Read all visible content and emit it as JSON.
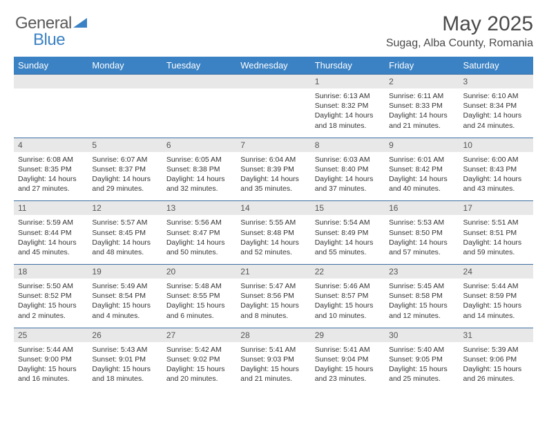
{
  "logo": {
    "text1": "General",
    "text2": "Blue"
  },
  "title": "May 2025",
  "location": "Sugag, Alba County, Romania",
  "colors": {
    "header_bg": "#3b82c4",
    "header_text": "#ffffff",
    "daynum_bg": "#e8e8e8",
    "rule": "#3b6ea0",
    "body_text": "#333333"
  },
  "weekdays": [
    "Sunday",
    "Monday",
    "Tuesday",
    "Wednesday",
    "Thursday",
    "Friday",
    "Saturday"
  ],
  "weeks": [
    [
      {
        "n": "",
        "sr": "",
        "ss": "",
        "dl": ""
      },
      {
        "n": "",
        "sr": "",
        "ss": "",
        "dl": ""
      },
      {
        "n": "",
        "sr": "",
        "ss": "",
        "dl": ""
      },
      {
        "n": "",
        "sr": "",
        "ss": "",
        "dl": ""
      },
      {
        "n": "1",
        "sr": "Sunrise: 6:13 AM",
        "ss": "Sunset: 8:32 PM",
        "dl": "Daylight: 14 hours and 18 minutes."
      },
      {
        "n": "2",
        "sr": "Sunrise: 6:11 AM",
        "ss": "Sunset: 8:33 PM",
        "dl": "Daylight: 14 hours and 21 minutes."
      },
      {
        "n": "3",
        "sr": "Sunrise: 6:10 AM",
        "ss": "Sunset: 8:34 PM",
        "dl": "Daylight: 14 hours and 24 minutes."
      }
    ],
    [
      {
        "n": "4",
        "sr": "Sunrise: 6:08 AM",
        "ss": "Sunset: 8:35 PM",
        "dl": "Daylight: 14 hours and 27 minutes."
      },
      {
        "n": "5",
        "sr": "Sunrise: 6:07 AM",
        "ss": "Sunset: 8:37 PM",
        "dl": "Daylight: 14 hours and 29 minutes."
      },
      {
        "n": "6",
        "sr": "Sunrise: 6:05 AM",
        "ss": "Sunset: 8:38 PM",
        "dl": "Daylight: 14 hours and 32 minutes."
      },
      {
        "n": "7",
        "sr": "Sunrise: 6:04 AM",
        "ss": "Sunset: 8:39 PM",
        "dl": "Daylight: 14 hours and 35 minutes."
      },
      {
        "n": "8",
        "sr": "Sunrise: 6:03 AM",
        "ss": "Sunset: 8:40 PM",
        "dl": "Daylight: 14 hours and 37 minutes."
      },
      {
        "n": "9",
        "sr": "Sunrise: 6:01 AM",
        "ss": "Sunset: 8:42 PM",
        "dl": "Daylight: 14 hours and 40 minutes."
      },
      {
        "n": "10",
        "sr": "Sunrise: 6:00 AM",
        "ss": "Sunset: 8:43 PM",
        "dl": "Daylight: 14 hours and 43 minutes."
      }
    ],
    [
      {
        "n": "11",
        "sr": "Sunrise: 5:59 AM",
        "ss": "Sunset: 8:44 PM",
        "dl": "Daylight: 14 hours and 45 minutes."
      },
      {
        "n": "12",
        "sr": "Sunrise: 5:57 AM",
        "ss": "Sunset: 8:45 PM",
        "dl": "Daylight: 14 hours and 48 minutes."
      },
      {
        "n": "13",
        "sr": "Sunrise: 5:56 AM",
        "ss": "Sunset: 8:47 PM",
        "dl": "Daylight: 14 hours and 50 minutes."
      },
      {
        "n": "14",
        "sr": "Sunrise: 5:55 AM",
        "ss": "Sunset: 8:48 PM",
        "dl": "Daylight: 14 hours and 52 minutes."
      },
      {
        "n": "15",
        "sr": "Sunrise: 5:54 AM",
        "ss": "Sunset: 8:49 PM",
        "dl": "Daylight: 14 hours and 55 minutes."
      },
      {
        "n": "16",
        "sr": "Sunrise: 5:53 AM",
        "ss": "Sunset: 8:50 PM",
        "dl": "Daylight: 14 hours and 57 minutes."
      },
      {
        "n": "17",
        "sr": "Sunrise: 5:51 AM",
        "ss": "Sunset: 8:51 PM",
        "dl": "Daylight: 14 hours and 59 minutes."
      }
    ],
    [
      {
        "n": "18",
        "sr": "Sunrise: 5:50 AM",
        "ss": "Sunset: 8:52 PM",
        "dl": "Daylight: 15 hours and 2 minutes."
      },
      {
        "n": "19",
        "sr": "Sunrise: 5:49 AM",
        "ss": "Sunset: 8:54 PM",
        "dl": "Daylight: 15 hours and 4 minutes."
      },
      {
        "n": "20",
        "sr": "Sunrise: 5:48 AM",
        "ss": "Sunset: 8:55 PM",
        "dl": "Daylight: 15 hours and 6 minutes."
      },
      {
        "n": "21",
        "sr": "Sunrise: 5:47 AM",
        "ss": "Sunset: 8:56 PM",
        "dl": "Daylight: 15 hours and 8 minutes."
      },
      {
        "n": "22",
        "sr": "Sunrise: 5:46 AM",
        "ss": "Sunset: 8:57 PM",
        "dl": "Daylight: 15 hours and 10 minutes."
      },
      {
        "n": "23",
        "sr": "Sunrise: 5:45 AM",
        "ss": "Sunset: 8:58 PM",
        "dl": "Daylight: 15 hours and 12 minutes."
      },
      {
        "n": "24",
        "sr": "Sunrise: 5:44 AM",
        "ss": "Sunset: 8:59 PM",
        "dl": "Daylight: 15 hours and 14 minutes."
      }
    ],
    [
      {
        "n": "25",
        "sr": "Sunrise: 5:44 AM",
        "ss": "Sunset: 9:00 PM",
        "dl": "Daylight: 15 hours and 16 minutes."
      },
      {
        "n": "26",
        "sr": "Sunrise: 5:43 AM",
        "ss": "Sunset: 9:01 PM",
        "dl": "Daylight: 15 hours and 18 minutes."
      },
      {
        "n": "27",
        "sr": "Sunrise: 5:42 AM",
        "ss": "Sunset: 9:02 PM",
        "dl": "Daylight: 15 hours and 20 minutes."
      },
      {
        "n": "28",
        "sr": "Sunrise: 5:41 AM",
        "ss": "Sunset: 9:03 PM",
        "dl": "Daylight: 15 hours and 21 minutes."
      },
      {
        "n": "29",
        "sr": "Sunrise: 5:41 AM",
        "ss": "Sunset: 9:04 PM",
        "dl": "Daylight: 15 hours and 23 minutes."
      },
      {
        "n": "30",
        "sr": "Sunrise: 5:40 AM",
        "ss": "Sunset: 9:05 PM",
        "dl": "Daylight: 15 hours and 25 minutes."
      },
      {
        "n": "31",
        "sr": "Sunrise: 5:39 AM",
        "ss": "Sunset: 9:06 PM",
        "dl": "Daylight: 15 hours and 26 minutes."
      }
    ]
  ]
}
